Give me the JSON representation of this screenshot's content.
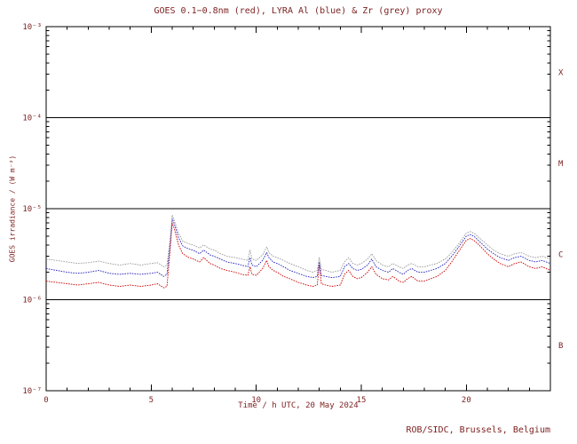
{
  "page": {
    "title": "GOES 0.1−0.8nm (red), LYRA Al (blue) & Zr (grey) proxy",
    "footer": "ROB/SIDC, Brussels, Belgium"
  },
  "chart_data": {
    "type": "line",
    "title": "GOES 0.1−0.8nm (red), LYRA Al (blue) & Zr (grey) proxy",
    "xlabel": "Time / h UTC, 20 May 2024",
    "ylabel": "GOES irradiance / (W m⁻²)",
    "footer": "ROB/SIDC, Brussels, Belgium",
    "x_range": [
      0,
      24
    ],
    "x_major_ticks": [
      0,
      5,
      10,
      15,
      20
    ],
    "x_minor_step": 1,
    "y_scale": "log",
    "y_range": [
      1e-07,
      0.001
    ],
    "y_tick_values": [
      1e-07,
      1e-06,
      1e-05,
      0.0001,
      0.001
    ],
    "y_tick_labels": [
      "10⁻⁷",
      "10⁻⁶",
      "10⁻⁵",
      "10⁻⁴",
      "10⁻³"
    ],
    "hlines": [
      0.0001,
      1e-05,
      1e-06
    ],
    "flare_class_labels": [
      {
        "label": "X",
        "between": [
          0.0001,
          0.001
        ]
      },
      {
        "label": "M",
        "between": [
          1e-05,
          0.0001
        ]
      },
      {
        "label": "C",
        "between": [
          1e-06,
          1e-05
        ]
      },
      {
        "label": "B",
        "between": [
          1e-07,
          1e-06
        ]
      }
    ],
    "grid": "off",
    "legend": "in-title",
    "colors": {
      "goes": "#cc0000",
      "lyra_al": "#2222bb",
      "lyra_zr": "#999999",
      "text": "#7c1f1f",
      "axis": "#000000"
    },
    "values_scale": 1e-06,
    "y_unit": "W m⁻²",
    "x": [
      0,
      0.5,
      1,
      1.5,
      2,
      2.5,
      3,
      3.5,
      4,
      4.5,
      5,
      5.3,
      5.6,
      5.75,
      5.9,
      6.0,
      6.1,
      6.3,
      6.5,
      6.8,
      7.0,
      7.3,
      7.5,
      7.8,
      8.0,
      8.3,
      8.6,
      9.0,
      9.3,
      9.6,
      9.7,
      9.8,
      10.0,
      10.3,
      10.5,
      10.6,
      10.8,
      11.0,
      11.3,
      11.6,
      12.0,
      12.4,
      12.7,
      12.9,
      13.0,
      13.1,
      13.3,
      13.6,
      14.0,
      14.2,
      14.4,
      14.6,
      14.8,
      15.0,
      15.3,
      15.5,
      15.7,
      16.0,
      16.3,
      16.5,
      16.8,
      17.0,
      17.2,
      17.4,
      17.7,
      18.0,
      18.3,
      18.6,
      19.0,
      19.3,
      19.6,
      20.0,
      20.2,
      20.4,
      20.7,
      21.0,
      21.3,
      21.6,
      22.0,
      22.3,
      22.6,
      23.0,
      23.3,
      23.6,
      24.0
    ],
    "series": [
      {
        "name": "GOES 0.1-0.8nm",
        "color_key": "goes",
        "values": [
          1.6,
          1.55,
          1.5,
          1.45,
          1.5,
          1.55,
          1.45,
          1.4,
          1.45,
          1.4,
          1.45,
          1.5,
          1.35,
          1.4,
          3.5,
          7.0,
          6.0,
          4.0,
          3.2,
          2.9,
          2.8,
          2.6,
          2.9,
          2.5,
          2.4,
          2.2,
          2.1,
          2.0,
          1.9,
          1.85,
          2.3,
          1.9,
          1.85,
          2.2,
          2.7,
          2.3,
          2.1,
          2.0,
          1.8,
          1.7,
          1.55,
          1.45,
          1.4,
          1.45,
          2.4,
          1.5,
          1.45,
          1.4,
          1.45,
          1.9,
          2.1,
          1.8,
          1.7,
          1.75,
          2.0,
          2.3,
          1.9,
          1.7,
          1.65,
          1.8,
          1.6,
          1.55,
          1.7,
          1.8,
          1.6,
          1.6,
          1.7,
          1.8,
          2.1,
          2.6,
          3.3,
          4.5,
          4.7,
          4.4,
          3.8,
          3.2,
          2.8,
          2.5,
          2.3,
          2.5,
          2.6,
          2.3,
          2.2,
          2.3,
          2.1
        ]
      },
      {
        "name": "LYRA Al proxy",
        "color_key": "lyra_al",
        "values": [
          2.2,
          2.1,
          2.0,
          1.95,
          2.0,
          2.1,
          1.95,
          1.9,
          1.95,
          1.9,
          1.95,
          2.0,
          1.8,
          1.9,
          4.0,
          7.8,
          6.8,
          4.8,
          3.9,
          3.6,
          3.5,
          3.2,
          3.5,
          3.1,
          3.0,
          2.8,
          2.6,
          2.5,
          2.4,
          2.3,
          2.9,
          2.4,
          2.3,
          2.7,
          3.3,
          2.9,
          2.6,
          2.5,
          2.3,
          2.1,
          1.95,
          1.8,
          1.75,
          1.8,
          2.6,
          1.85,
          1.8,
          1.75,
          1.8,
          2.3,
          2.5,
          2.2,
          2.1,
          2.15,
          2.4,
          2.8,
          2.3,
          2.1,
          2.0,
          2.2,
          2.0,
          1.9,
          2.1,
          2.2,
          2.0,
          2.0,
          2.1,
          2.2,
          2.5,
          3.0,
          3.7,
          5.0,
          5.2,
          4.9,
          4.2,
          3.6,
          3.2,
          2.9,
          2.7,
          2.9,
          3.0,
          2.7,
          2.6,
          2.7,
          2.5
        ]
      },
      {
        "name": "LYRA Zr proxy",
        "color_key": "lyra_zr",
        "values": [
          2.8,
          2.7,
          2.6,
          2.5,
          2.55,
          2.65,
          2.5,
          2.4,
          2.5,
          2.4,
          2.5,
          2.55,
          2.3,
          2.4,
          4.6,
          8.5,
          7.4,
          5.4,
          4.4,
          4.1,
          4.0,
          3.7,
          4.0,
          3.6,
          3.5,
          3.2,
          3.0,
          2.9,
          2.8,
          2.7,
          3.5,
          2.8,
          2.7,
          3.1,
          3.8,
          3.3,
          3.0,
          2.9,
          2.7,
          2.5,
          2.3,
          2.1,
          2.0,
          2.1,
          2.9,
          2.15,
          2.1,
          2.0,
          2.1,
          2.6,
          2.9,
          2.5,
          2.4,
          2.5,
          2.8,
          3.2,
          2.7,
          2.4,
          2.3,
          2.5,
          2.3,
          2.2,
          2.4,
          2.5,
          2.3,
          2.3,
          2.4,
          2.5,
          2.8,
          3.3,
          4.0,
          5.4,
          5.6,
          5.3,
          4.6,
          4.0,
          3.5,
          3.2,
          3.0,
          3.2,
          3.3,
          3.0,
          2.9,
          3.0,
          2.8
        ]
      }
    ]
  }
}
